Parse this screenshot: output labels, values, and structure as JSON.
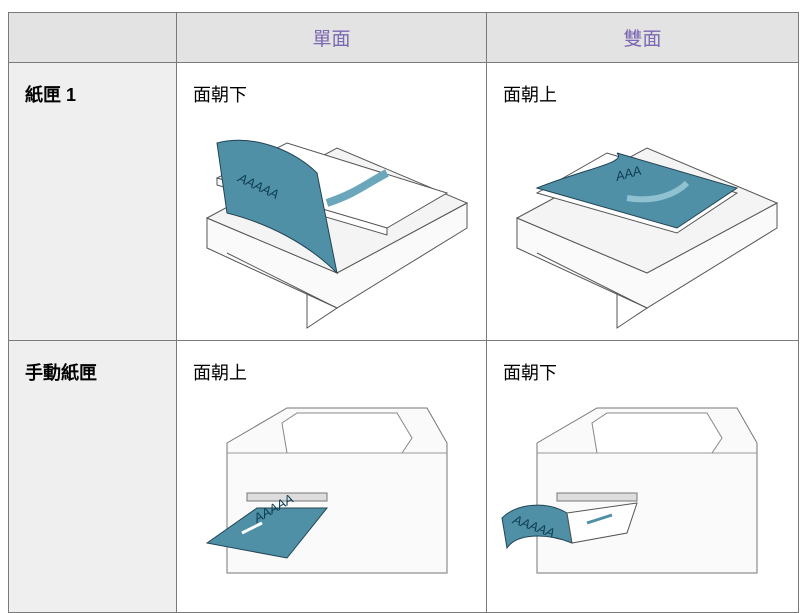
{
  "table": {
    "columns": [
      "單面",
      "雙面"
    ],
    "rows": [
      {
        "label": "紙匣 1",
        "cells": [
          {
            "caption": "面朝下",
            "paper_text": "AAAAA"
          },
          {
            "caption": "面朝上",
            "paper_text": "AAA"
          }
        ]
      },
      {
        "label": "手動紙匣",
        "cells": [
          {
            "caption": "面朝上",
            "paper_text": "AAAAA"
          },
          {
            "caption": "面朝下",
            "paper_text": "AAAAA"
          }
        ]
      }
    ]
  }
}
